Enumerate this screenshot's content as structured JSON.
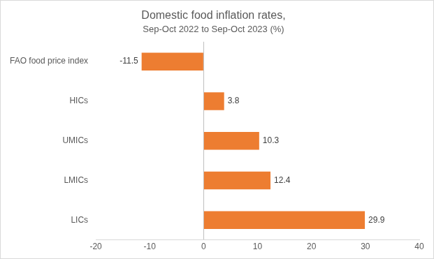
{
  "chart_data": {
    "type": "bar",
    "orientation": "horizontal",
    "title": "Domestic food inflation rates,",
    "subtitle": "Sep-Oct 2022 to Sep-Oct 2023 (%)",
    "categories": [
      "FAO food price index",
      "HICs",
      "UMICs",
      "LMICs",
      "LICs"
    ],
    "values": [
      -11.5,
      3.8,
      10.3,
      12.4,
      29.9
    ],
    "color": "#ed7d31",
    "xlim": [
      -20,
      40
    ],
    "xticks": [
      -20,
      -10,
      0,
      10,
      20,
      30,
      40
    ],
    "grid": false,
    "data_labels": true
  }
}
